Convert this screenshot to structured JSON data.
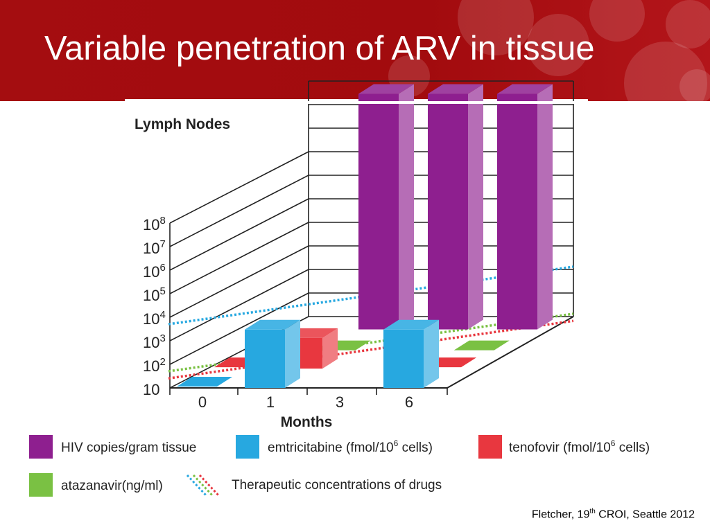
{
  "slide": {
    "title": "Variable penetration of ARV in tissue",
    "citation_prefix": "Fletcher, 19",
    "citation_sup": "th",
    "citation_suffix": " CROI, Seattle 2012"
  },
  "colors": {
    "banner": "#a20b0e",
    "hiv": "#8e1f8f",
    "emtricitabine": "#27a8e0",
    "tenofovir": "#e8373f",
    "atazanavir": "#7ac143"
  },
  "chart_data": {
    "type": "bar",
    "title": "Lymph Nodes",
    "xlabel": "Months",
    "ylabel": "",
    "y_scale": "log10",
    "ylim": [
      10,
      100000000000
    ],
    "y_ticks": [
      {
        "base": "10",
        "exp": ""
      },
      {
        "base": "10",
        "exp": "2"
      },
      {
        "base": "10",
        "exp": "3"
      },
      {
        "base": "10",
        "exp": "4"
      },
      {
        "base": "10",
        "exp": "5"
      },
      {
        "base": "10",
        "exp": "6"
      },
      {
        "base": "10",
        "exp": "7"
      },
      {
        "base": "10",
        "exp": "8"
      }
    ],
    "categories": [
      "0",
      "1",
      "3",
      "6"
    ],
    "series": [
      {
        "key": "hiv",
        "name": "HIV copies/gram tissue",
        "values": [
          null,
          100000000000.0,
          100000000000.0,
          100000000000.0
        ]
      },
      {
        "key": "emtricitabine",
        "name": "emtricitabine (fmol/10",
        "name_sup": "6",
        "name_after": " cells)",
        "values": [
          10,
          3000,
          null,
          3000
        ]
      },
      {
        "key": "tenofovir",
        "name": "tenofovir (fmol/10",
        "name_sup": "6",
        "name_after": " cells)",
        "values": [
          10,
          200,
          null,
          10
        ]
      },
      {
        "key": "atazanavir",
        "name": "atazanavir(ng/ml)",
        "values": [
          null,
          10,
          10,
          10
        ]
      }
    ],
    "therapeutic_lines": {
      "label": "Therapeutic concentrations of drugs",
      "emtricitabine": 10000,
      "atazanavir": 100,
      "tenofovir": 50
    },
    "legend": "bottom"
  }
}
